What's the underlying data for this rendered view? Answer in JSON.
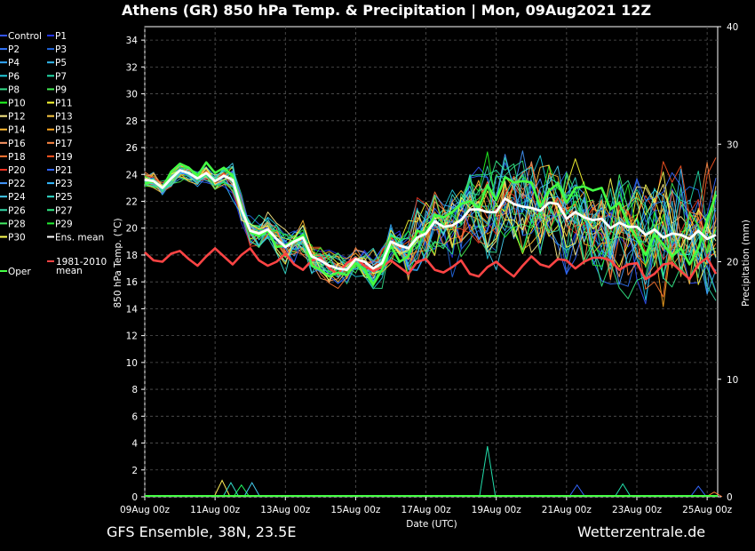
{
  "chart_data": {
    "type": "line",
    "title": "Athens  (GR)  850 hPa Temp. & Precipitation | Mon, 09Aug2021 12Z",
    "xlabel": "Date (UTC)",
    "ylabel": "850 hPa Temp. (°C)",
    "y2label": "Precipitation (mm)",
    "footer_left": "GFS Ensemble, 38N, 23.5E",
    "footer_right": "Wetterzentrale.de",
    "ylim": [
      0,
      35
    ],
    "y2lim": [
      0,
      40
    ],
    "xlim": [
      0,
      16.3
    ],
    "x_ticks": [
      {
        "x": 0,
        "label": "09Aug 00z"
      },
      {
        "x": 2,
        "label": "11Aug 00z"
      },
      {
        "x": 4,
        "label": "13Aug 00z"
      },
      {
        "x": 6,
        "label": "15Aug 00z"
      },
      {
        "x": 8,
        "label": "17Aug 00z"
      },
      {
        "x": 10,
        "label": "19Aug 00z"
      },
      {
        "x": 12,
        "label": "21Aug 00z"
      },
      {
        "x": 14,
        "label": "23Aug 00z"
      },
      {
        "x": 16,
        "label": "25Aug 00z"
      }
    ],
    "y_ticks": [
      0,
      2,
      4,
      6,
      8,
      10,
      12,
      14,
      16,
      18,
      20,
      22,
      24,
      26,
      28,
      30,
      32,
      34
    ],
    "y2_ticks": [
      0,
      10,
      20,
      30,
      40
    ],
    "grid": true,
    "legend_position": "left",
    "legend": [
      {
        "name": "Control",
        "color": "#3355ff"
      },
      {
        "name": "P1",
        "color": "#2233ee"
      },
      {
        "name": "P2",
        "color": "#3377ff"
      },
      {
        "name": "P3",
        "color": "#2266dd"
      },
      {
        "name": "P4",
        "color": "#33aaff"
      },
      {
        "name": "P5",
        "color": "#33bbee"
      },
      {
        "name": "P6",
        "color": "#22ccdd"
      },
      {
        "name": "P7",
        "color": "#22ddaa"
      },
      {
        "name": "P8",
        "color": "#33dd88"
      },
      {
        "name": "P9",
        "color": "#44ee55"
      },
      {
        "name": "P10",
        "color": "#22ff22"
      },
      {
        "name": "P11",
        "color": "#ffff33"
      },
      {
        "name": "P12",
        "color": "#ffee88"
      },
      {
        "name": "P13",
        "color": "#ffcc44"
      },
      {
        "name": "P14",
        "color": "#ffbb33"
      },
      {
        "name": "P15",
        "color": "#ffaa22"
      },
      {
        "name": "P16",
        "color": "#ff9966"
      },
      {
        "name": "P17",
        "color": "#ff8844"
      },
      {
        "name": "P18",
        "color": "#ff7733"
      },
      {
        "name": "P19",
        "color": "#ff5522"
      },
      {
        "name": "P20",
        "color": "#ee3322"
      },
      {
        "name": "P21",
        "color": "#3366ff"
      },
      {
        "name": "P22",
        "color": "#4499ff"
      },
      {
        "name": "P23",
        "color": "#33bbff"
      },
      {
        "name": "P24",
        "color": "#44ccee"
      },
      {
        "name": "P25",
        "color": "#33ddcc"
      },
      {
        "name": "P26",
        "color": "#33ddaa"
      },
      {
        "name": "P27",
        "color": "#33ee88"
      },
      {
        "name": "P28",
        "color": "#44ee66"
      },
      {
        "name": "P29",
        "color": "#22ee33"
      },
      {
        "name": "P30",
        "color": "#ffff55"
      },
      {
        "name": "Ens. mean",
        "color": "#ffffff"
      },
      {
        "name": "1981-2010 mean",
        "color": "#ff4444"
      },
      {
        "name": "Oper",
        "color": "#44ff44"
      }
    ],
    "series_x": [
      0,
      0.25,
      0.5,
      0.75,
      1,
      1.25,
      1.5,
      1.75,
      2,
      2.25,
      2.5,
      2.75,
      3,
      3.25,
      3.5,
      3.75,
      4,
      4.25,
      4.5,
      4.75,
      5,
      5.25,
      5.5,
      5.75,
      6,
      6.25,
      6.5,
      6.75,
      7,
      7.25,
      7.5,
      7.75,
      8,
      8.25,
      8.5,
      8.75,
      9,
      9.25,
      9.5,
      9.75,
      10,
      10.25,
      10.5,
      10.75,
      11,
      11.25,
      11.5,
      11.75,
      12,
      12.25,
      12.5,
      12.75,
      13,
      13.25,
      13.5,
      13.75,
      14,
      14.25,
      14.5,
      14.75,
      15,
      15.25,
      15.5,
      15.75,
      16,
      16.25
    ],
    "ens_mean": [
      23.6,
      23.5,
      23,
      23.7,
      24.3,
      24.1,
      23.7,
      24.1,
      23.5,
      23.9,
      23.6,
      21.4,
      19.8,
      19.6,
      19.9,
      19.2,
      18.6,
      19,
      19.3,
      17.9,
      17.6,
      17.2,
      17,
      16.9,
      17.7,
      17.5,
      17,
      17.4,
      19,
      18.7,
      18.5,
      19.3,
      19.6,
      20.5,
      20.1,
      20.2,
      20.6,
      21.4,
      21.4,
      21.2,
      21.2,
      22.2,
      21.8,
      21.6,
      21.5,
      21.3,
      21.9,
      21.8,
      20.7,
      21.2,
      20.8,
      20.6,
      20.7,
      20,
      20.4,
      20.1,
      20.1,
      19.5,
      19.9,
      19.3,
      19.6,
      19.5,
      19.2,
      19.8,
      19.2,
      19.5
    ],
    "oper": [
      23.3,
      23.5,
      23,
      24.2,
      24.8,
      24.5,
      23.9,
      24.9,
      24.1,
      24.5,
      23.9,
      21.5,
      19.7,
      19.4,
      19.8,
      18.6,
      18.7,
      19.1,
      19.5,
      17.2,
      16.9,
      16.4,
      16.7,
      16.5,
      17.4,
      16.9,
      15.8,
      16.9,
      18.7,
      17.5,
      17.9,
      19.8,
      19.6,
      21,
      20.8,
      21.2,
      21.8,
      22,
      21.5,
      23.2,
      22.1,
      23.8,
      23.4,
      23.5,
      23.4,
      21.6,
      22.8,
      23.3,
      21.9,
      23,
      23.1,
      22.8,
      23,
      21.4,
      21.9,
      20.3,
      19.2,
      18,
      19.5,
      18.8,
      17.9,
      18.5,
      17.3,
      18.5,
      20.6,
      22.5
    ],
    "climate_mean": [
      18.2,
      17.6,
      17.5,
      18.1,
      18.3,
      17.7,
      17.2,
      17.9,
      18.5,
      17.9,
      17.3,
      18,
      18.5,
      17.6,
      17.2,
      17.5,
      18.1,
      17.3,
      16.9,
      17.6,
      17.8,
      17,
      16.6,
      17.4,
      17.8,
      17.2,
      16.8,
      17.1,
      17.6,
      17.1,
      16.6,
      17.5,
      17.7,
      16.9,
      16.7,
      17.1,
      17.6,
      16.6,
      16.4,
      17.1,
      17.5,
      16.9,
      16.4,
      17.2,
      17.9,
      17.3,
      17.1,
      17.7,
      17.6,
      17,
      17.5,
      17.8,
      17.8,
      17.6,
      16.9,
      17.3,
      17.4,
      16.2,
      16.6,
      17.3,
      17.4,
      16.8,
      16.2,
      17.3,
      17.8,
      16.6
    ],
    "precip_spikes": [
      {
        "x": 9.75,
        "mm": 4.3
      },
      {
        "x": 2.2,
        "mm": 1.4
      },
      {
        "x": 2.45,
        "mm": 1.2
      },
      {
        "x": 2.75,
        "mm": 1.0
      },
      {
        "x": 3.05,
        "mm": 1.2
      },
      {
        "x": 12.3,
        "mm": 1.0
      },
      {
        "x": 13.6,
        "mm": 1.1
      },
      {
        "x": 15.75,
        "mm": 0.9
      },
      {
        "x": 16.2,
        "mm": 0.4
      }
    ]
  }
}
